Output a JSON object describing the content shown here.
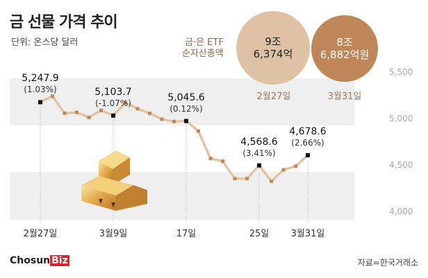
{
  "chart_data": {
    "type": "line",
    "title": "금 선물 가격 추이",
    "unit": "단위: 온스당 달러",
    "yticks": [
      "5,500",
      "5,000",
      "4,500",
      "4,000"
    ],
    "ytick_values": [
      5500,
      5000,
      4500,
      4000
    ],
    "ylim": [
      4000,
      5500
    ],
    "values": [
      5247.9,
      5312,
      5128,
      5138,
      5084,
      5160,
      5103.7,
      5244,
      5177,
      5128,
      5065,
      5040,
      5045.6,
      4937,
      4643,
      4614,
      4427,
      4427,
      4568.6,
      4398,
      4521,
      4560,
      4678.6
    ],
    "x_labels": [
      {
        "index": 0,
        "text": "2월27일"
      },
      {
        "index": 6,
        "text": "3월9일"
      },
      {
        "index": 12,
        "text": "17일"
      },
      {
        "index": 18,
        "text": "25일"
      },
      {
        "index": 22,
        "text": "3월31일"
      }
    ],
    "annotations": [
      {
        "index": 0,
        "value": "5,247.9",
        "change": "(1.03%)"
      },
      {
        "index": 6,
        "value": "5,103.7",
        "change": "(-1.07%)"
      },
      {
        "index": 12,
        "value": "5,045.6",
        "change": "(0.12%)"
      },
      {
        "index": 18,
        "value": "4,568.6",
        "change": "(3.41%)"
      },
      {
        "index": 22,
        "value": "4,678.6",
        "change": "(2.66%)"
      }
    ],
    "line_color": "#e6c3a0",
    "marker_color": "#c08a5c"
  },
  "etf": {
    "label1": "금·은 ETF",
    "label2": "순자산총액",
    "c1": {
      "line1": "9조",
      "line2": "6,374억",
      "date": "2월27일",
      "color": "#dfc1a3"
    },
    "c2": {
      "line1": "8조",
      "line2": "6,882억원",
      "date": "3월31일",
      "color": "#bd8353"
    }
  },
  "footer": {
    "logo_a": "Chosun",
    "logo_b": "Biz",
    "source": "자료=한국거래소"
  }
}
